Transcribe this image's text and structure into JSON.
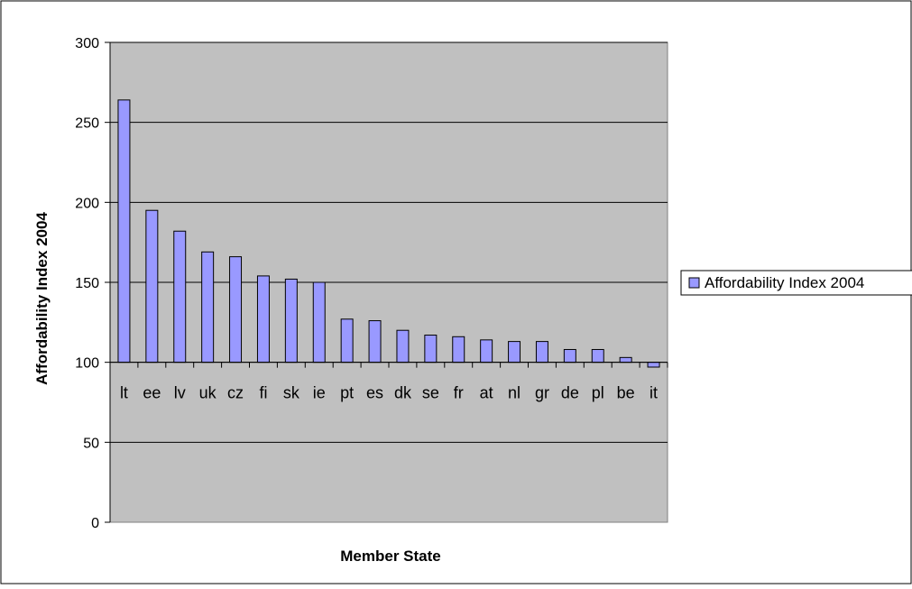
{
  "chart_data": {
    "type": "bar",
    "title": "",
    "xlabel": "Member State",
    "ylabel": "Affordability Index 2004",
    "ylim": [
      0,
      300
    ],
    "yticks": [
      0,
      50,
      100,
      150,
      200,
      250,
      300
    ],
    "baseline": 100,
    "grid": true,
    "legend_position": "right",
    "categories": [
      "lt",
      "ee",
      "lv",
      "uk",
      "cz",
      "fi",
      "sk",
      "ie",
      "pt",
      "es",
      "dk",
      "se",
      "fr",
      "at",
      "nl",
      "gr",
      "de",
      "pl",
      "be",
      "it"
    ],
    "series": [
      {
        "name": "Affordability Index 2004",
        "color": "#9999ff",
        "values": [
          264,
          195,
          182,
          169,
          166,
          154,
          152,
          150,
          127,
          126,
          120,
          117,
          116,
          114,
          113,
          113,
          108,
          108,
          103,
          97
        ]
      }
    ],
    "colors": {
      "plot_background": "#c0c0c0",
      "bar_fill": "#9999ff",
      "bar_stroke": "#000000",
      "gridline": "#000000"
    }
  }
}
